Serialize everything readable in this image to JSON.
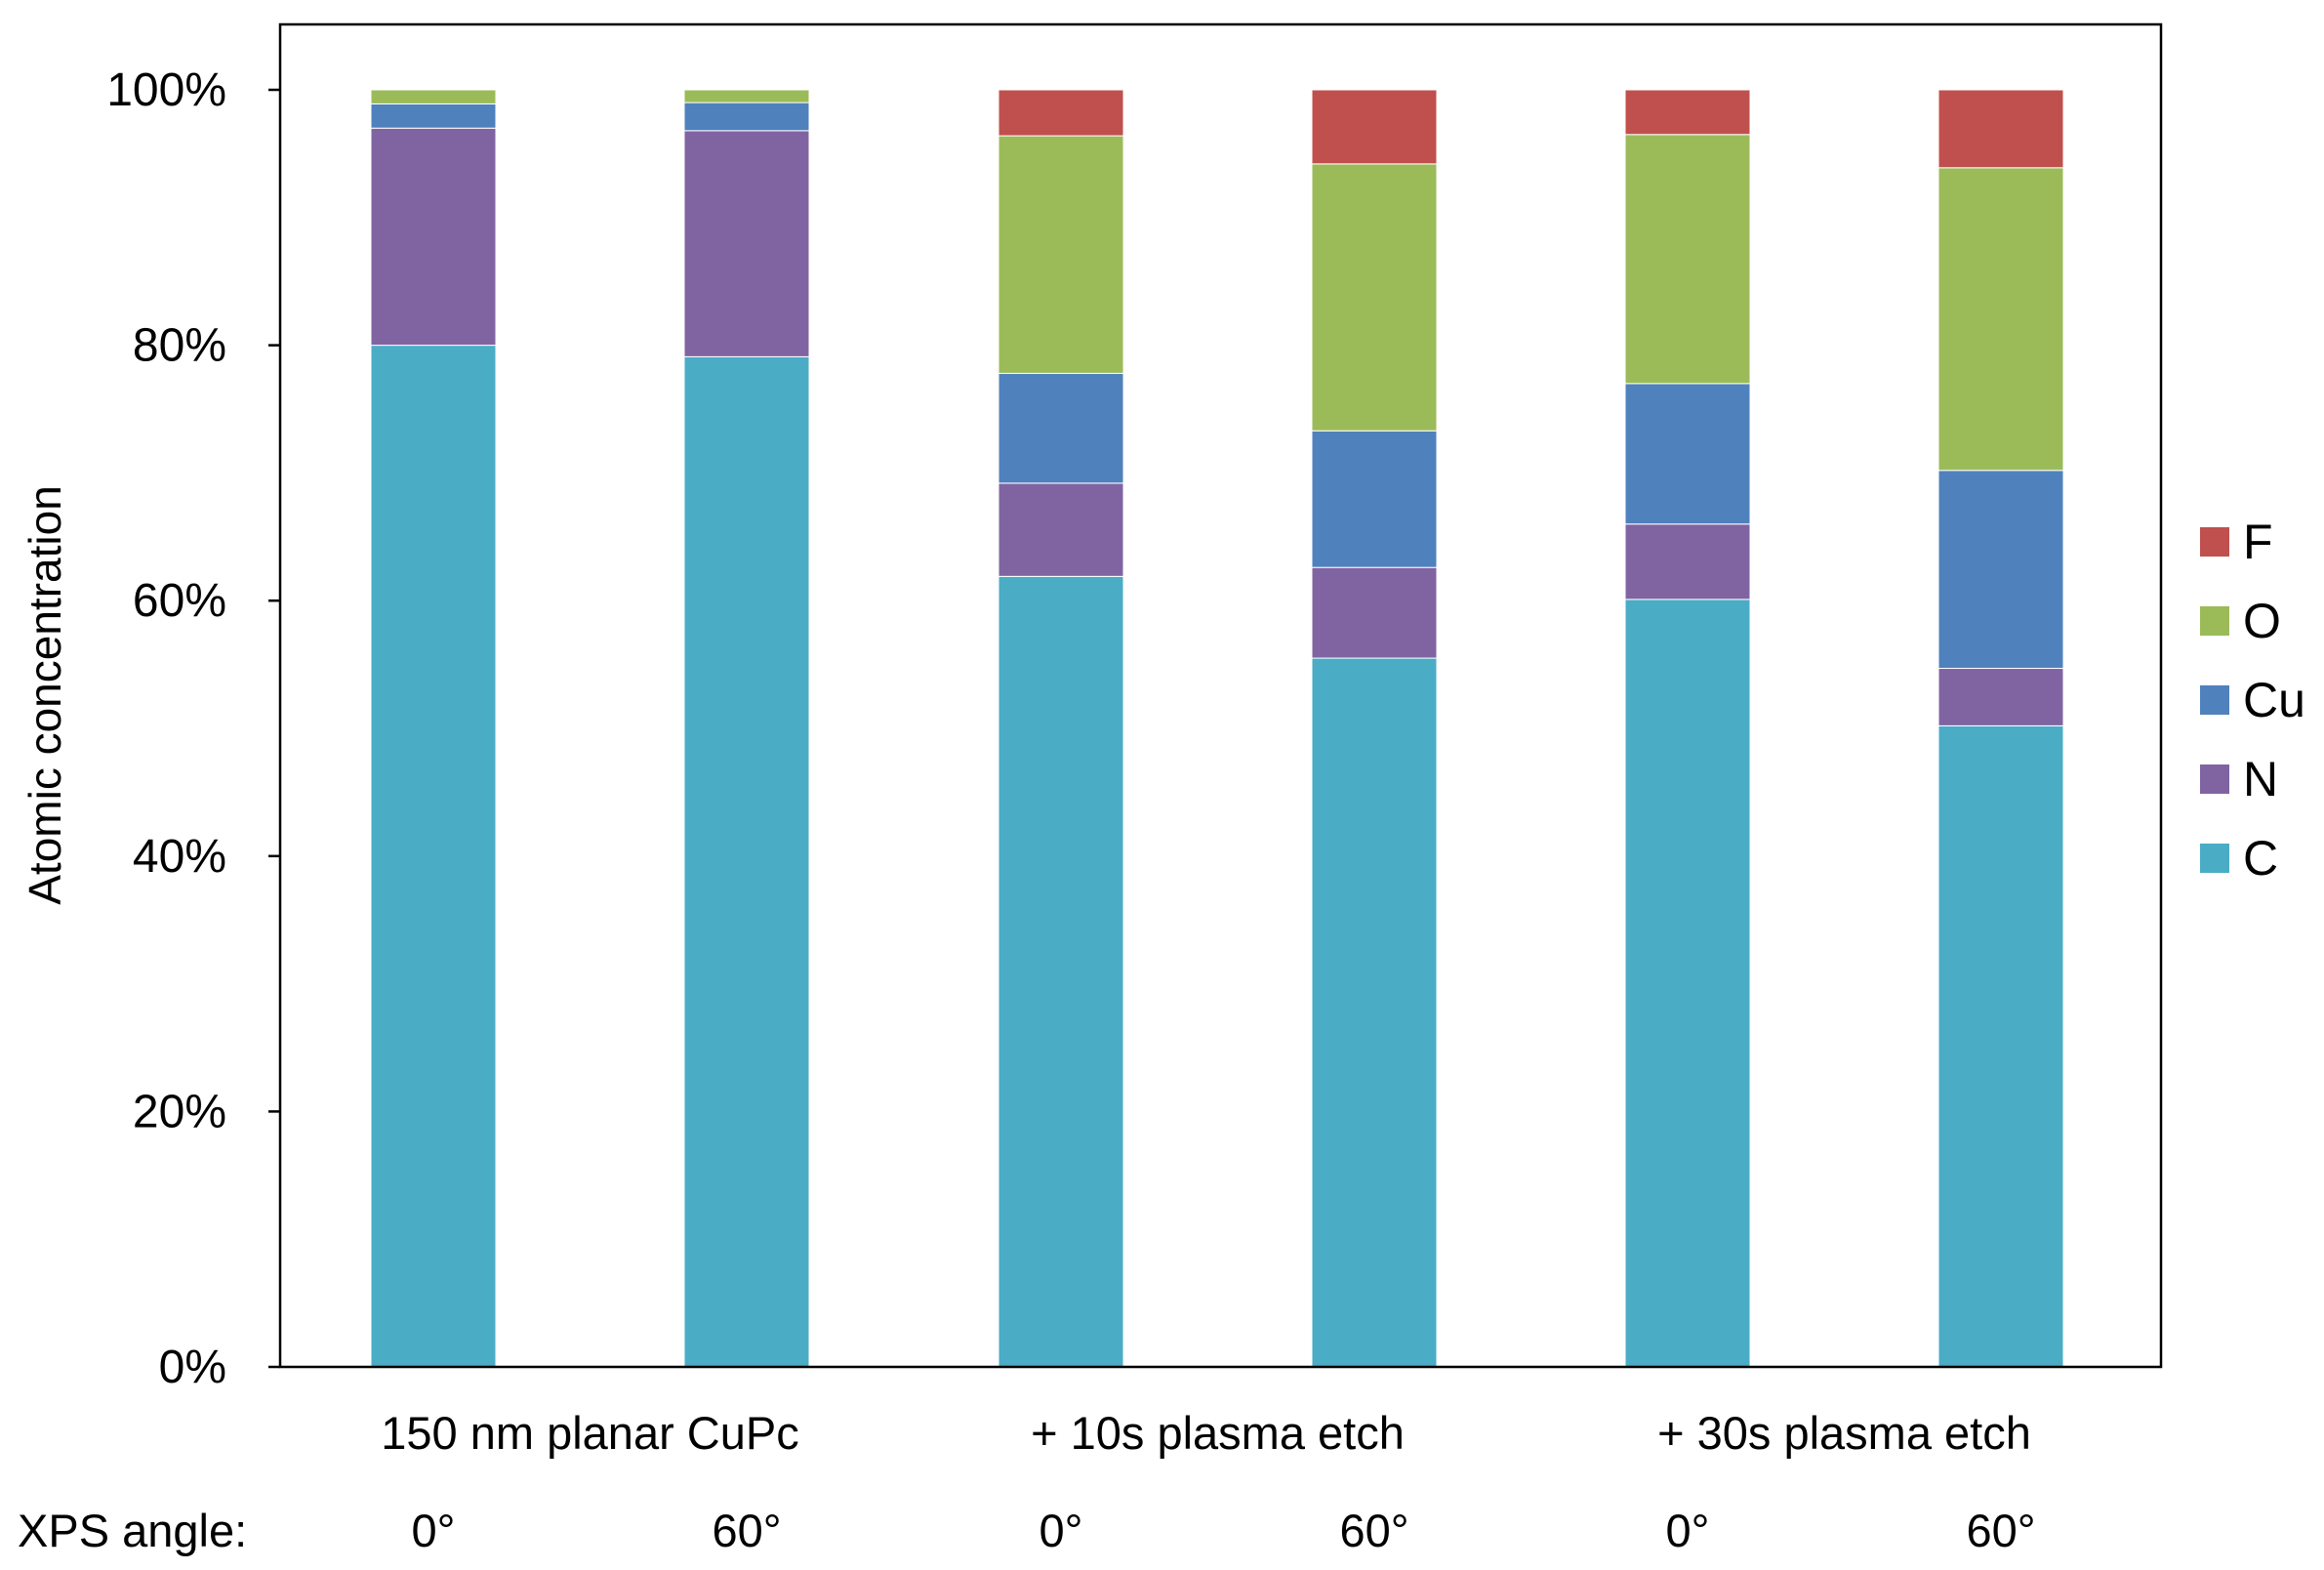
{
  "chart_data": {
    "type": "bar",
    "stacked": true,
    "ylabel": "Atomic concentration",
    "ylim": [
      0,
      100
    ],
    "y_ticks": [
      "0%",
      "20%",
      "40%",
      "60%",
      "80%",
      "100%"
    ],
    "group_labels": [
      "150 nm planar CuPc",
      "+ 10s plasma etch",
      "+ 30s plasma etch"
    ],
    "row_label": "XPS angle:",
    "categories": [
      "0°",
      "60°",
      "0°",
      "60°",
      "0°",
      "60°"
    ],
    "series": [
      {
        "name": "C",
        "color": "#4bacc6",
        "values": [
          80.0,
          79.1,
          61.9,
          55.5,
          60.1,
          50.2
        ]
      },
      {
        "name": "N",
        "color": "#8064a2",
        "values": [
          17.0,
          17.7,
          7.3,
          7.1,
          5.9,
          4.5
        ]
      },
      {
        "name": "Cu",
        "color": "#4f81bd",
        "values": [
          1.9,
          2.2,
          8.6,
          10.7,
          11.0,
          15.5
        ]
      },
      {
        "name": "O",
        "color": "#9bbb59",
        "values": [
          1.1,
          1.0,
          18.6,
          20.9,
          19.5,
          23.7
        ]
      },
      {
        "name": "F",
        "color": "#c0504d",
        "values": [
          0.0,
          0.0,
          3.6,
          5.8,
          3.5,
          6.1
        ]
      }
    ],
    "legend_order": [
      "F",
      "O",
      "Cu",
      "N",
      "C"
    ],
    "legend_position": "right",
    "grid": false
  }
}
